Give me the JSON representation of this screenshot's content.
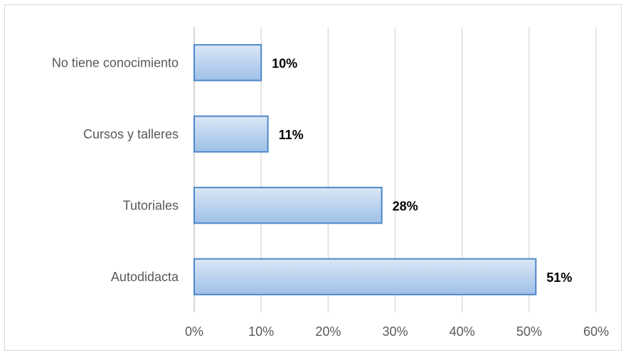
{
  "chart_data": {
    "type": "bar",
    "orientation": "horizontal",
    "categories": [
      "No tiene conocimiento",
      "Cursos y talleres",
      "Tutoriales",
      "Autodidacta"
    ],
    "values": [
      10,
      11,
      28,
      51
    ],
    "value_labels": [
      "10%",
      "11%",
      "28%",
      "51%"
    ],
    "xlim": [
      0,
      60
    ],
    "x_ticks": [
      0,
      10,
      20,
      30,
      40,
      50,
      60
    ],
    "x_tick_labels": [
      "0%",
      "10%",
      "20%",
      "30%",
      "40%",
      "50%",
      "60%"
    ],
    "grid": "vertical",
    "legend": "none",
    "colors": {
      "bar_fill_top": "#dbe7f6",
      "bar_fill_bottom": "#9ec0e8",
      "bar_stroke": "#4f87c9",
      "grid": "#d9d9d9",
      "axis": "#bfbfbf",
      "text": "#595959"
    }
  }
}
